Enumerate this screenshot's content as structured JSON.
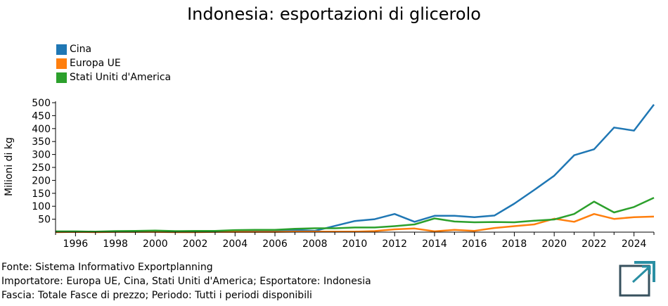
{
  "chart_data": {
    "type": "line",
    "title": "Indonesia: esportazioni di glicerolo",
    "ylabel": "Milioni di kg",
    "xlabel": "",
    "xlim": [
      1995,
      2025
    ],
    "ylim": [
      0,
      500
    ],
    "y_ticks": [
      50,
      100,
      150,
      200,
      250,
      300,
      350,
      400,
      450,
      500
    ],
    "x_ticks": [
      1996,
      1998,
      2000,
      2002,
      2004,
      2006,
      2008,
      2010,
      2012,
      2014,
      2016,
      2018,
      2020,
      2022,
      2024
    ],
    "x": [
      1995,
      1996,
      1997,
      1998,
      1999,
      2000,
      2001,
      2002,
      2003,
      2004,
      2005,
      2006,
      2007,
      2008,
      2009,
      2010,
      2011,
      2012,
      2013,
      2014,
      2015,
      2016,
      2017,
      2018,
      2019,
      2020,
      2021,
      2022,
      2023,
      2024,
      2025
    ],
    "legend_position": "top-left",
    "series": [
      {
        "name": "Cina",
        "color": "#1f77b4",
        "values": [
          2,
          2,
          1,
          2,
          3,
          3,
          2,
          2,
          3,
          4,
          6,
          7,
          9,
          5,
          24,
          43,
          50,
          70,
          40,
          63,
          63,
          58,
          64,
          110,
          163,
          218,
          297,
          320,
          404,
          392,
          493
        ]
      },
      {
        "name": "Europa UE",
        "color": "#ff7f0e",
        "values": [
          0,
          1,
          0,
          1,
          1,
          1,
          0,
          0,
          1,
          1,
          1,
          1,
          2,
          2,
          2,
          2,
          4,
          11,
          14,
          3,
          9,
          5,
          16,
          23,
          30,
          52,
          40,
          70,
          51,
          58,
          60
        ]
      },
      {
        "name": "Stati Uniti d'America",
        "color": "#2ca02c",
        "values": [
          3,
          3,
          2,
          4,
          5,
          6,
          4,
          5,
          5,
          8,
          9,
          9,
          13,
          15,
          15,
          18,
          18,
          23,
          30,
          53,
          41,
          38,
          39,
          38,
          44,
          49,
          70,
          118,
          76,
          97,
          133
        ]
      }
    ]
  },
  "footer": {
    "source": "Fonte: Sistema Informativo Exportplanning",
    "filters": "Importatore: Europa UE, Cina, Stati Uniti d'America; Esportatore: Indonesia",
    "range": "Fascia: Totale Fasce di prezzo; Periodo: Tutti i periodi disponibili"
  },
  "logo": {
    "icon": "exportplanning-logo-icon",
    "color": "#2a8fa3",
    "dark": "#37515e"
  }
}
